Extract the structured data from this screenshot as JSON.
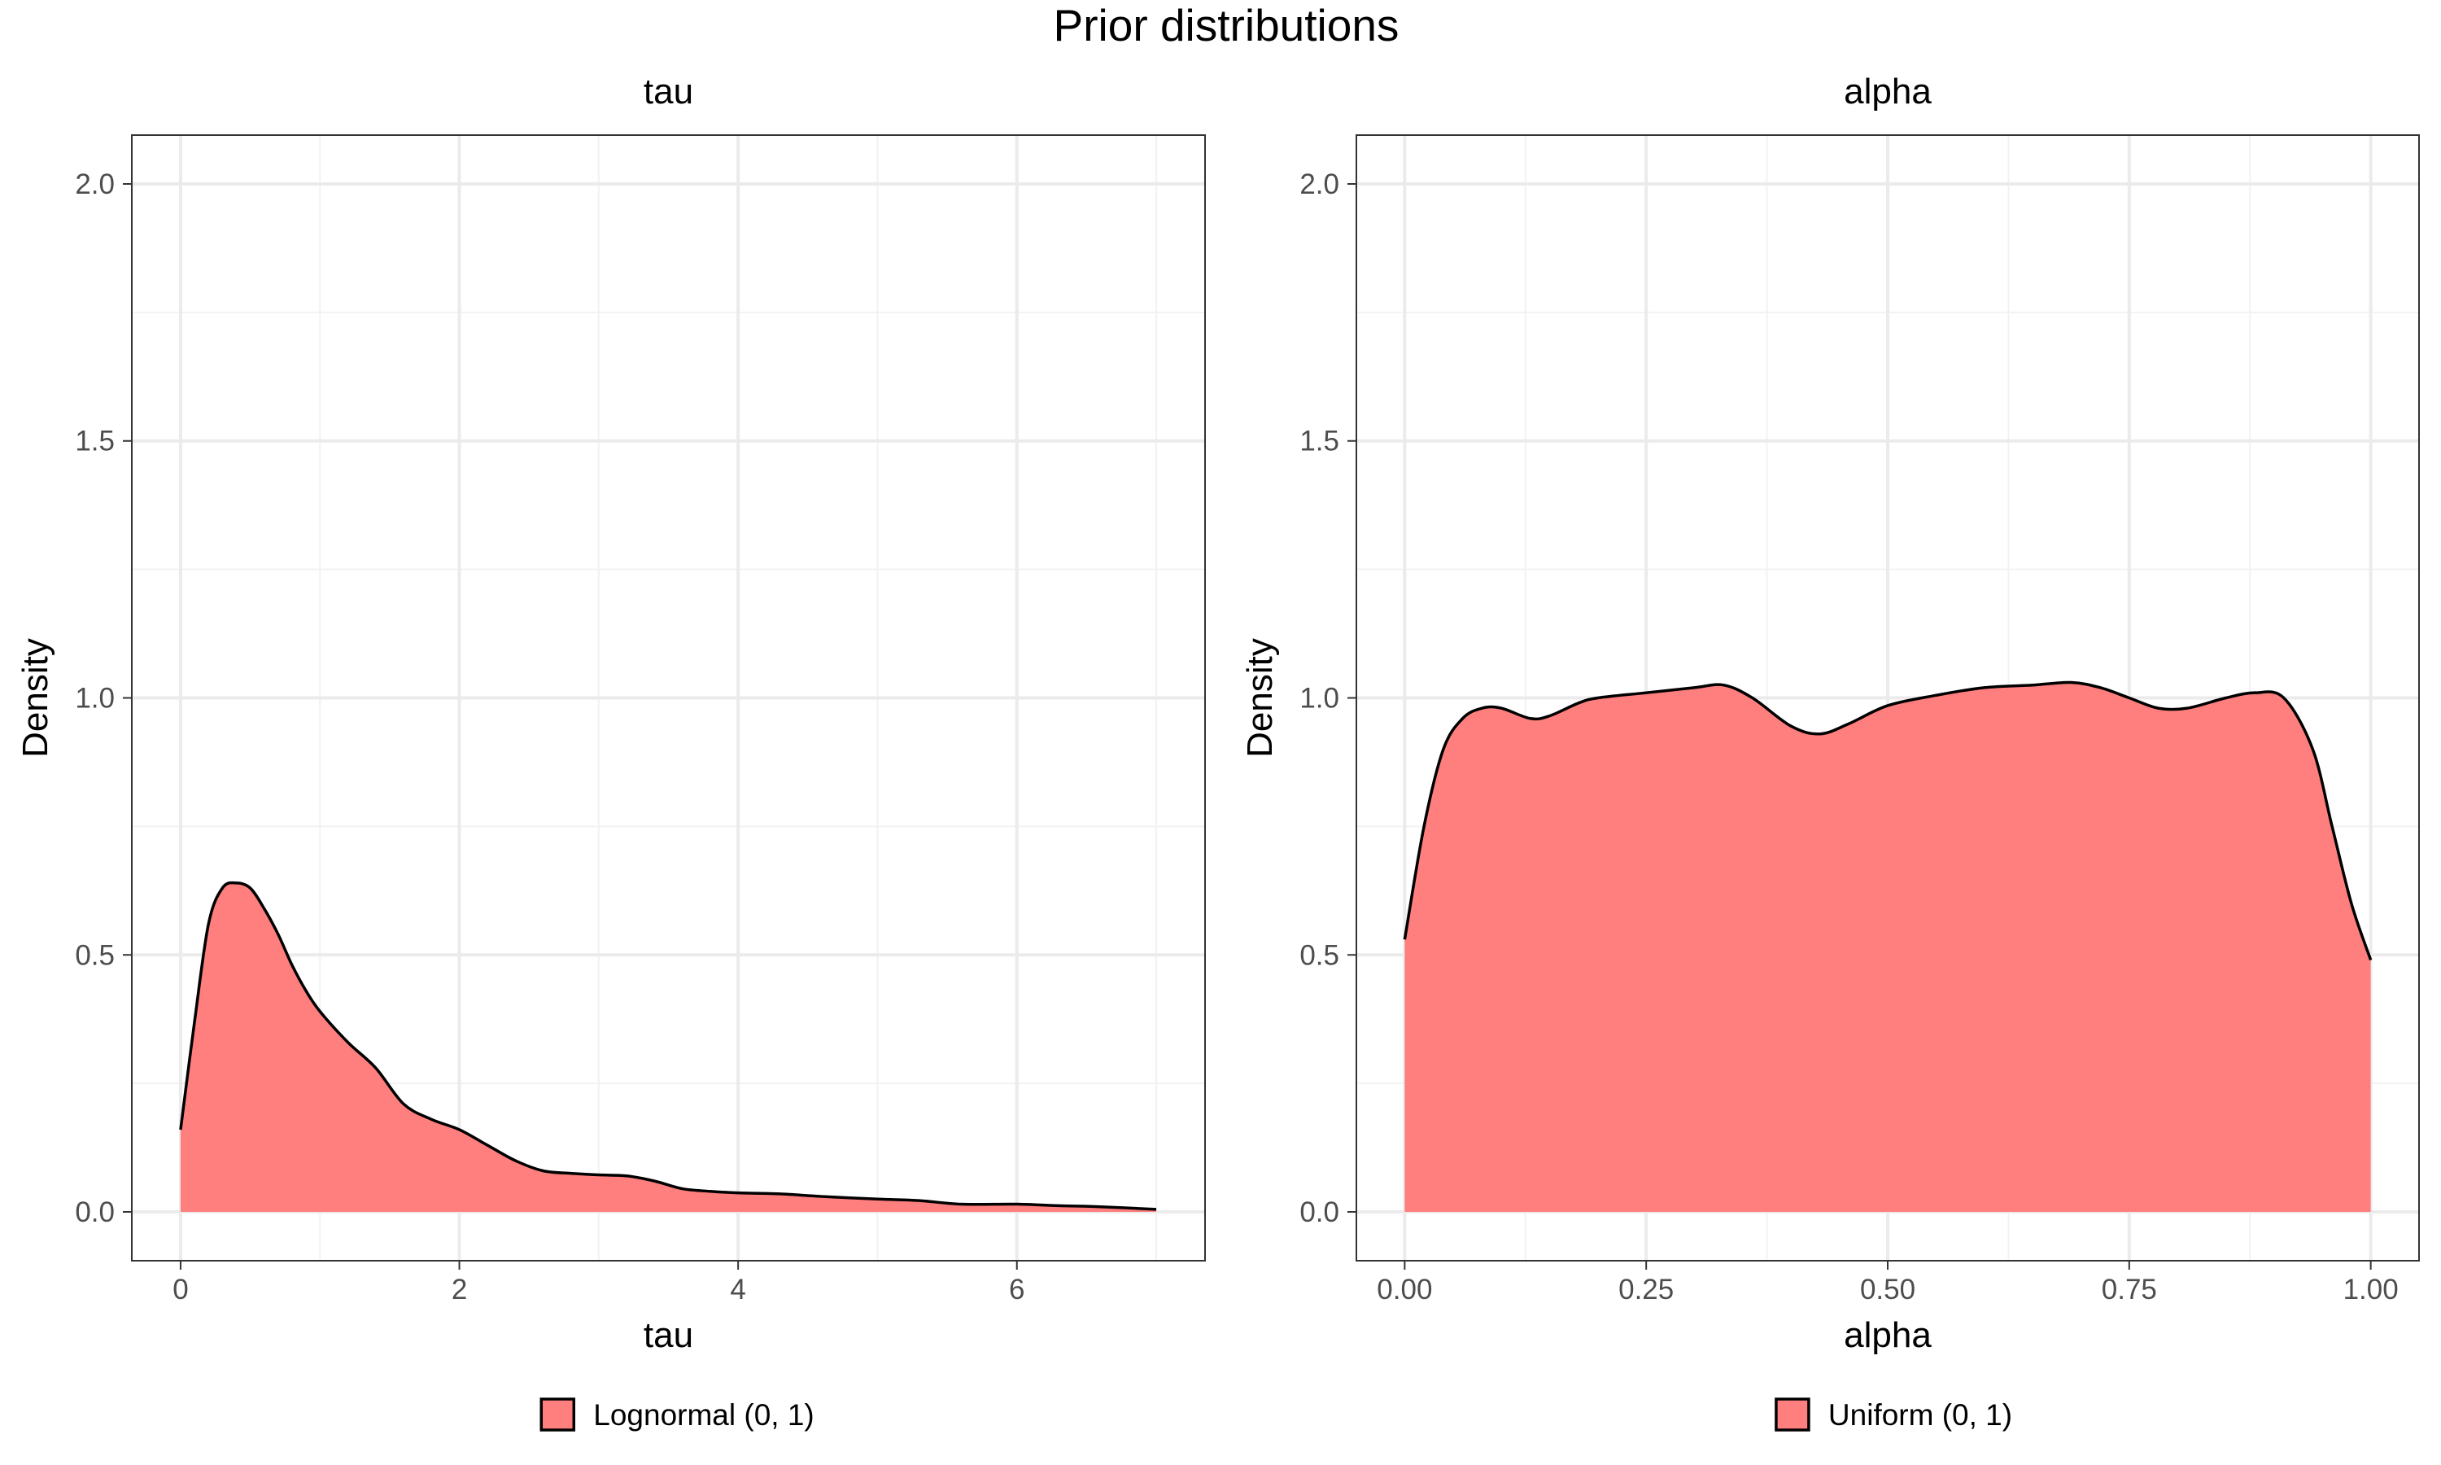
{
  "figure": {
    "title": "Prior distributions"
  },
  "chart_data": [
    {
      "type": "area",
      "title": "tau",
      "xlabel": "tau",
      "ylabel": "Density",
      "xlim": [
        -0.35,
        7.35
      ],
      "ylim": [
        -0.095,
        2.095
      ],
      "x_ticks": [
        0,
        2,
        4,
        6
      ],
      "x_tick_labels": [
        "0",
        "2",
        "4",
        "6"
      ],
      "y_ticks": [
        0,
        0.5,
        1,
        1.5,
        2
      ],
      "y_tick_labels": [
        "0.0",
        "0.5",
        "1.0",
        "1.5",
        "2.0"
      ],
      "grid": true,
      "legend": {
        "position": "bottom",
        "entries": [
          {
            "label": "Lognormal (0, 1)",
            "color": "#ff7f7f"
          }
        ]
      },
      "series": [
        {
          "name": "Lognormal (0, 1)",
          "fill": "#ff7f7f",
          "x": [
            0.0,
            0.1,
            0.2,
            0.3,
            0.4,
            0.5,
            0.6,
            0.7,
            0.8,
            0.9,
            1.0,
            1.2,
            1.4,
            1.6,
            1.8,
            2.0,
            2.2,
            2.4,
            2.6,
            2.8,
            3.0,
            3.2,
            3.4,
            3.6,
            3.8,
            4.0,
            4.3,
            4.6,
            5.0,
            5.3,
            5.6,
            6.0,
            6.3,
            6.6,
            7.0
          ],
          "y": [
            0.16,
            0.37,
            0.56,
            0.63,
            0.64,
            0.63,
            0.59,
            0.54,
            0.48,
            0.43,
            0.39,
            0.33,
            0.28,
            0.21,
            0.18,
            0.16,
            0.13,
            0.1,
            0.08,
            0.075,
            0.072,
            0.07,
            0.06,
            0.045,
            0.04,
            0.037,
            0.035,
            0.03,
            0.025,
            0.022,
            0.015,
            0.015,
            0.012,
            0.01,
            0.005
          ]
        }
      ]
    },
    {
      "type": "area",
      "title": "alpha",
      "xlabel": "alpha",
      "ylabel": "Density",
      "xlim": [
        -0.05,
        1.05
      ],
      "ylim": [
        -0.095,
        2.095
      ],
      "x_ticks": [
        0,
        0.25,
        0.5,
        0.75,
        1
      ],
      "x_tick_labels": [
        "0.00",
        "0.25",
        "0.50",
        "0.75",
        "1.00"
      ],
      "y_ticks": [
        0,
        0.5,
        1,
        1.5,
        2
      ],
      "y_tick_labels": [
        "0.0",
        "0.5",
        "1.0",
        "1.5",
        "2.0"
      ],
      "grid": true,
      "legend": {
        "position": "bottom",
        "entries": [
          {
            "label": "Uniform (0, 1)",
            "color": "#ff7f7f"
          }
        ]
      },
      "series": [
        {
          "name": "Uniform (0, 1)",
          "fill": "#ff7f7f",
          "x": [
            0.0,
            0.02,
            0.04,
            0.06,
            0.08,
            0.1,
            0.13,
            0.15,
            0.18,
            0.2,
            0.25,
            0.3,
            0.33,
            0.36,
            0.4,
            0.43,
            0.46,
            0.5,
            0.55,
            0.6,
            0.65,
            0.69,
            0.72,
            0.75,
            0.78,
            0.81,
            0.85,
            0.88,
            0.91,
            0.94,
            0.96,
            0.98,
            1.0
          ],
          "y": [
            0.53,
            0.75,
            0.9,
            0.96,
            0.98,
            0.98,
            0.96,
            0.965,
            0.99,
            1.0,
            1.01,
            1.02,
            1.025,
            1.0,
            0.945,
            0.93,
            0.95,
            0.985,
            1.005,
            1.02,
            1.025,
            1.03,
            1.02,
            1.0,
            0.98,
            0.98,
            1.0,
            1.01,
            1.0,
            0.9,
            0.75,
            0.6,
            0.49
          ]
        }
      ]
    }
  ]
}
